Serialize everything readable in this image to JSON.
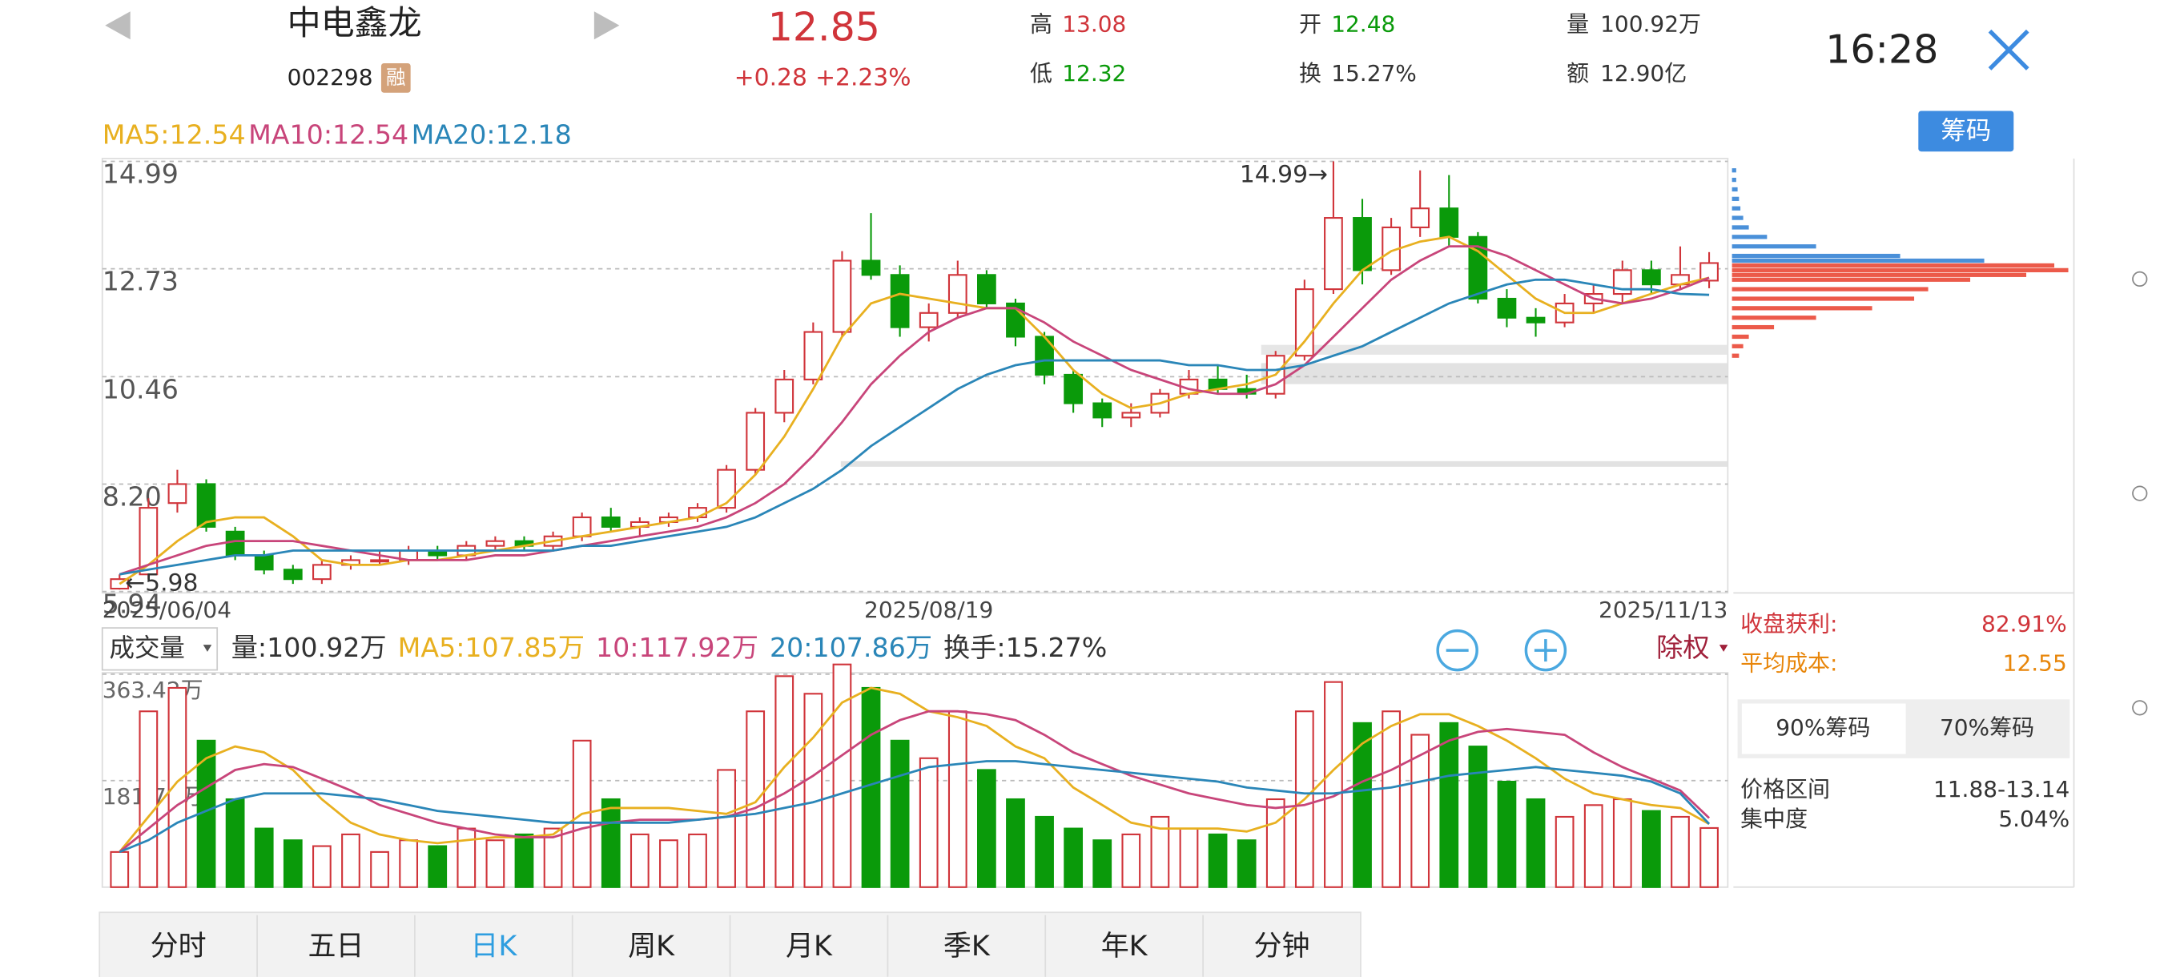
{
  "header": {
    "name": "中电鑫龙",
    "code": "002298",
    "margin_tag": "融",
    "price": "12.85",
    "change": "+0.28",
    "change_pct": "+2.23%",
    "high_label": "高",
    "high": "13.08",
    "low_label": "低",
    "low": "12.32",
    "open_label": "开",
    "open": "12.48",
    "turnover_label": "换",
    "turnover": "15.27%",
    "volume_label": "量",
    "volume": "100.92万",
    "amount_label": "额",
    "amount": "12.90亿",
    "time": "16:28",
    "chip_button": "筹码"
  },
  "chart_data": {
    "type": "candlestick",
    "categories": [
      "2025/06/04",
      null,
      null,
      null,
      null,
      null,
      null,
      null,
      null,
      null,
      null,
      null,
      null,
      null,
      null,
      null,
      null,
      null,
      null,
      null,
      null,
      null,
      null,
      null,
      null,
      null,
      null,
      null,
      "2025/08/19",
      null,
      null,
      null,
      null,
      null,
      null,
      null,
      null,
      null,
      null,
      null,
      null,
      null,
      null,
      null,
      null,
      null,
      null,
      null,
      null,
      null,
      null,
      null,
      null,
      null,
      null,
      "2025/11/13"
    ],
    "open": [
      6.0,
      6.3,
      7.8,
      8.2,
      7.2,
      6.7,
      6.4,
      6.2,
      6.5,
      6.6,
      6.6,
      6.8,
      6.7,
      6.9,
      7.0,
      6.9,
      7.1,
      7.5,
      7.3,
      7.4,
      7.5,
      7.7,
      8.5,
      9.7,
      10.4,
      11.4,
      12.9,
      12.6,
      11.5,
      11.8,
      12.6,
      12.0,
      11.3,
      10.5,
      9.9,
      9.6,
      9.7,
      10.1,
      10.4,
      10.2,
      10.1,
      10.9,
      12.3,
      13.8,
      12.7,
      13.6,
      14.0,
      13.4,
      12.1,
      11.7,
      11.6,
      12.0,
      12.2,
      12.7,
      12.4,
      12.48
    ],
    "high": [
      6.3,
      7.9,
      8.5,
      8.3,
      7.3,
      6.8,
      6.5,
      6.6,
      6.7,
      6.8,
      6.9,
      6.9,
      7.0,
      7.1,
      7.1,
      7.2,
      7.6,
      7.7,
      7.5,
      7.6,
      7.8,
      8.6,
      9.8,
      10.6,
      11.6,
      13.1,
      13.9,
      12.8,
      12.0,
      12.9,
      12.7,
      12.1,
      11.4,
      10.6,
      10.0,
      9.9,
      10.2,
      10.6,
      10.7,
      10.5,
      11.0,
      12.5,
      14.99,
      14.2,
      13.8,
      14.8,
      14.7,
      13.5,
      12.3,
      11.9,
      12.2,
      12.4,
      12.9,
      12.9,
      13.2,
      13.08
    ],
    "low": [
      5.98,
      6.2,
      7.6,
      7.2,
      6.6,
      6.3,
      6.1,
      6.1,
      6.4,
      6.5,
      6.5,
      6.6,
      6.6,
      6.8,
      6.8,
      6.8,
      7.0,
      7.2,
      7.1,
      7.3,
      7.4,
      7.6,
      8.4,
      9.5,
      10.3,
      11.3,
      12.5,
      11.3,
      11.2,
      11.7,
      11.9,
      11.1,
      10.3,
      9.7,
      9.4,
      9.4,
      9.6,
      10.0,
      10.1,
      10.0,
      10.0,
      10.8,
      12.2,
      12.4,
      12.6,
      13.4,
      13.2,
      12.0,
      11.5,
      11.3,
      11.5,
      11.8,
      12.0,
      12.2,
      12.3,
      12.32
    ],
    "close": [
      6.2,
      7.7,
      8.2,
      7.3,
      6.7,
      6.4,
      6.2,
      6.5,
      6.6,
      6.6,
      6.8,
      6.7,
      6.9,
      7.0,
      6.9,
      7.1,
      7.5,
      7.3,
      7.4,
      7.5,
      7.7,
      8.5,
      9.7,
      10.4,
      11.4,
      12.9,
      12.6,
      11.5,
      11.8,
      12.6,
      12.0,
      11.3,
      10.5,
      9.9,
      9.6,
      9.7,
      10.1,
      10.4,
      10.2,
      10.1,
      10.9,
      12.3,
      13.8,
      12.7,
      13.6,
      14.0,
      13.4,
      12.1,
      11.7,
      11.6,
      12.0,
      12.2,
      12.7,
      12.4,
      12.6,
      12.85
    ],
    "up_color": "#d0343a",
    "down_color": "#0a9a0a",
    "ylim": [
      5.94,
      14.99
    ],
    "yticks": [
      14.99,
      12.73,
      10.46,
      {
        "value": 8.2,
        "label": "8.20"
      },
      5.94
    ],
    "grid": true,
    "series": [
      {
        "name": "MA5",
        "label": "MA5:12.54",
        "color": "#e8b020",
        "values": [
          6.1,
          6.5,
          7.0,
          7.4,
          7.5,
          7.5,
          7.1,
          6.6,
          6.5,
          6.5,
          6.6,
          6.6,
          6.7,
          6.8,
          6.9,
          7.0,
          7.1,
          7.2,
          7.3,
          7.4,
          7.5,
          7.8,
          8.4,
          9.2,
          10.2,
          11.3,
          12.0,
          12.2,
          12.1,
          12.0,
          11.9,
          11.9,
          11.3,
          10.6,
          10.1,
          9.8,
          9.9,
          10.1,
          10.2,
          10.3,
          10.5,
          11.2,
          12.0,
          12.7,
          13.1,
          13.3,
          13.4,
          13.1,
          12.6,
          12.1,
          11.8,
          11.8,
          12.0,
          12.2,
          12.4,
          12.54
        ]
      },
      {
        "name": "MA10",
        "label": "MA10:12.54",
        "color": "#c8457a",
        "values": [
          6.3,
          6.5,
          6.7,
          6.9,
          7.0,
          7.0,
          7.0,
          6.9,
          6.8,
          6.7,
          6.6,
          6.6,
          6.6,
          6.7,
          6.7,
          6.8,
          6.9,
          7.0,
          7.1,
          7.2,
          7.3,
          7.5,
          7.8,
          8.2,
          8.8,
          9.5,
          10.3,
          10.9,
          11.4,
          11.7,
          11.9,
          11.9,
          11.6,
          11.2,
          10.9,
          10.6,
          10.4,
          10.2,
          10.1,
          10.1,
          10.3,
          10.7,
          11.3,
          11.9,
          12.5,
          12.9,
          13.2,
          13.2,
          13.0,
          12.7,
          12.4,
          12.1,
          12.0,
          12.1,
          12.3,
          12.54
        ]
      },
      {
        "name": "MA20",
        "label": "MA20:12.18",
        "color": "#2a86b8",
        "values": [
          6.3,
          6.4,
          6.5,
          6.6,
          6.7,
          6.7,
          6.8,
          6.8,
          6.8,
          6.8,
          6.8,
          6.8,
          6.8,
          6.8,
          6.8,
          6.8,
          6.9,
          6.9,
          7.0,
          7.1,
          7.2,
          7.3,
          7.5,
          7.8,
          8.1,
          8.5,
          9.0,
          9.4,
          9.8,
          10.2,
          10.5,
          10.7,
          10.8,
          10.8,
          10.8,
          10.8,
          10.8,
          10.7,
          10.7,
          10.6,
          10.6,
          10.7,
          10.9,
          11.1,
          11.4,
          11.7,
          12.0,
          12.2,
          12.4,
          12.5,
          12.5,
          12.4,
          12.3,
          12.3,
          12.2,
          12.18
        ]
      }
    ],
    "annotations": [
      {
        "text": "14.99→",
        "value": 14.99
      },
      {
        "text": "←5.98",
        "value": 5.98
      }
    ]
  },
  "volume": {
    "selector": "成交量",
    "adjust": "除权",
    "ylim": [
      0,
      363.42
    ],
    "yticks": [
      {
        "value": 181.71,
        "label": "181.71万"
      },
      {
        "value": 363.42,
        "label": "363.42万"
      }
    ],
    "labels": [
      {
        "text": "量:100.92万",
        "color": "#333333"
      },
      {
        "text": "MA5:107.85万",
        "color": "#e8b020"
      },
      {
        "text": "10:117.92万",
        "color": "#c8457a"
      },
      {
        "text": "20:107.86万",
        "color": "#2a86b8"
      },
      {
        "text": "换手:15.27%",
        "color": "#333333"
      }
    ],
    "values": [
      60,
      300,
      340,
      250,
      150,
      100,
      80,
      70,
      90,
      60,
      80,
      70,
      100,
      80,
      90,
      100,
      250,
      150,
      90,
      80,
      90,
      200,
      300,
      360,
      330,
      380,
      340,
      250,
      220,
      300,
      200,
      150,
      120,
      100,
      80,
      90,
      120,
      100,
      90,
      80,
      150,
      300,
      350,
      280,
      300,
      260,
      280,
      240,
      180,
      150,
      120,
      140,
      150,
      130,
      120,
      100.92
    ],
    "series": [
      {
        "name": "MA5",
        "color": "#e8b020",
        "values": [
          60,
          120,
          180,
          220,
          240,
          230,
          200,
          150,
          110,
          90,
          80,
          75,
          80,
          85,
          85,
          90,
          125,
          135,
          135,
          135,
          130,
          125,
          145,
          205,
          255,
          315,
          340,
          330,
          300,
          290,
          275,
          240,
          220,
          170,
          140,
          110,
          100,
          100,
          100,
          95,
          110,
          150,
          200,
          245,
          275,
          295,
          295,
          275,
          250,
          220,
          185,
          160,
          150,
          140,
          135,
          107.85
        ]
      },
      {
        "name": "MA10",
        "color": "#c8457a",
        "values": [
          60,
          100,
          140,
          170,
          200,
          210,
          205,
          185,
          165,
          140,
          125,
          110,
          100,
          90,
          85,
          85,
          100,
          110,
          115,
          115,
          115,
          120,
          135,
          160,
          190,
          225,
          260,
          285,
          300,
          300,
          295,
          285,
          260,
          230,
          210,
          190,
          175,
          160,
          150,
          140,
          135,
          140,
          155,
          180,
          200,
          225,
          250,
          265,
          270,
          265,
          260,
          230,
          205,
          185,
          165,
          117.92
        ]
      },
      {
        "name": "MA20",
        "color": "#2a86b8",
        "values": [
          60,
          80,
          110,
          130,
          150,
          160,
          160,
          160,
          155,
          150,
          140,
          130,
          125,
          120,
          115,
          110,
          110,
          110,
          110,
          110,
          115,
          120,
          125,
          135,
          145,
          160,
          175,
          190,
          205,
          210,
          215,
          215,
          210,
          205,
          200,
          195,
          190,
          185,
          180,
          170,
          165,
          160,
          160,
          165,
          170,
          180,
          190,
          195,
          200,
          205,
          200,
          195,
          190,
          180,
          160,
          107.86
        ]
      }
    ]
  },
  "chips": {
    "prices": [
      10.9,
      11.1,
      11.3,
      11.5,
      11.7,
      11.9,
      12.1,
      12.3,
      12.5,
      12.6,
      12.7,
      12.8,
      12.9,
      13.0,
      13.2,
      13.4,
      13.6,
      13.8,
      14.0,
      14.2,
      14.4,
      14.6,
      14.8
    ],
    "values": [
      5,
      8,
      12,
      30,
      60,
      100,
      130,
      140,
      170,
      210,
      240,
      230,
      180,
      120,
      60,
      25,
      12,
      8,
      6,
      5,
      4,
      3,
      3
    ],
    "below_color": "#ec5a4a",
    "above_color": "#4a90d9"
  },
  "chip_panel": {
    "profit_label": "收盘获利:",
    "profit": "82.91%",
    "cost_label": "平均成本:",
    "cost": "12.55",
    "tabs": [
      "90%筹码",
      "70%筹码"
    ],
    "range_label": "价格区间",
    "range": "11.88-13.14",
    "concentration_label": "集中度",
    "concentration": "5.04%"
  },
  "tabs": [
    "分时",
    "五日",
    "日K",
    "周K",
    "月K",
    "季K",
    "年K",
    "分钟"
  ],
  "active_tab": "日K"
}
